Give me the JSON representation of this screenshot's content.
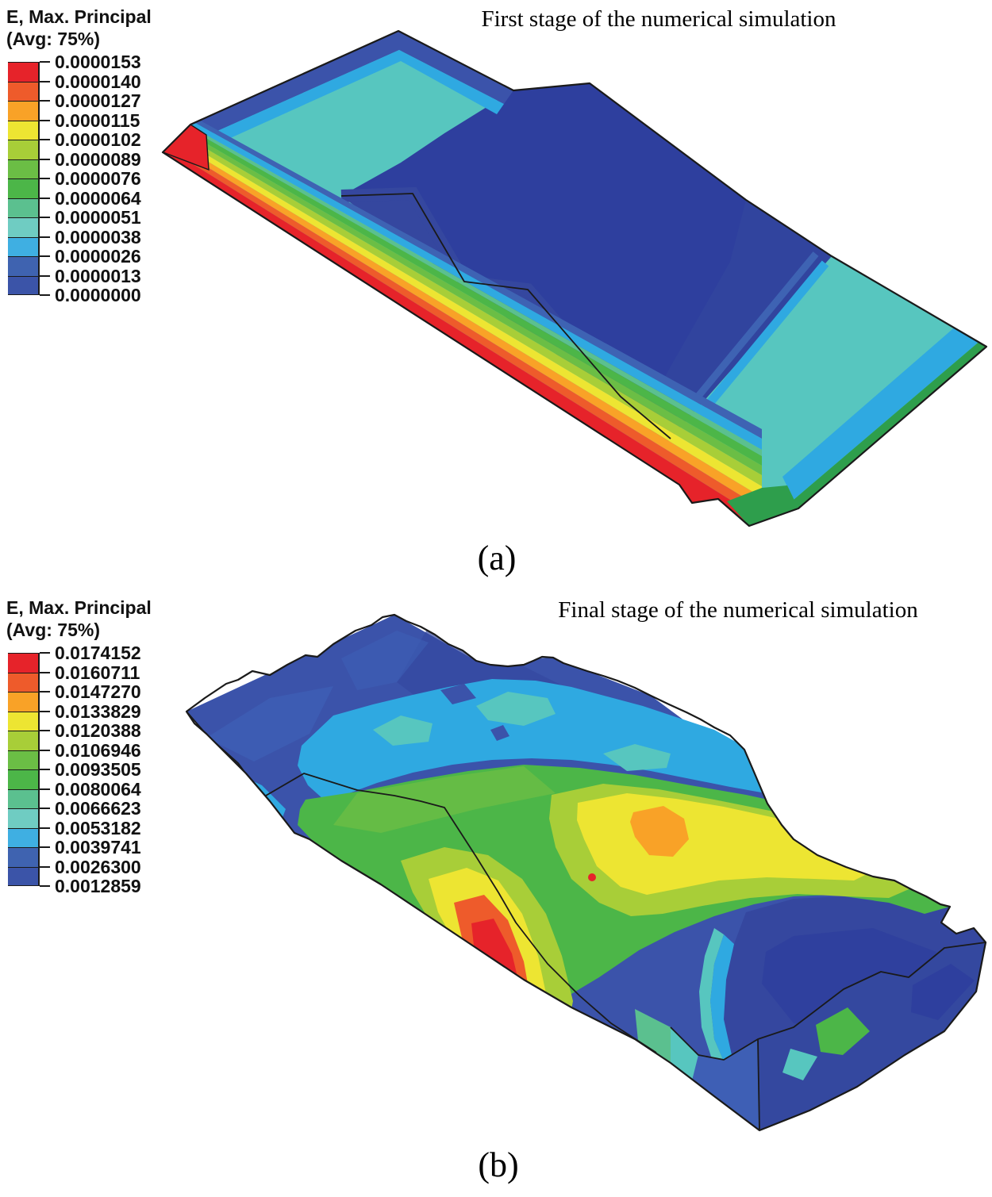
{
  "palette": {
    "red": "#E6232A",
    "orange_red": "#EE5B2B",
    "orange": "#F9A227",
    "yellow": "#EDE532",
    "yellow_green": "#A8CE38",
    "light_green": "#6BBE45",
    "green": "#4CB648",
    "sea_green": "#5BC08F",
    "teal": "#57C6BF",
    "cyan": "#2FA9E1",
    "light_blue": "#3E63B3",
    "blue": "#3B53AA",
    "indigo": "#2E3F9E",
    "navy": "#34489F",
    "medium_blue": "#3E5FB5",
    "slope_blue": "#35479F",
    "dark_green": "#2E9E4C",
    "outline": "#1a1a1a"
  },
  "panels": [
    {
      "id": "a",
      "caption": "(a)",
      "title": "First stage of the numerical simulation",
      "legend": {
        "field": "E, Max. Principal",
        "averaging": "(Avg: 75%)",
        "ticks": [
          "0.0000153",
          "0.0000140",
          "0.0000127",
          "0.0000115",
          "0.0000102",
          "0.0000089",
          "0.0000076",
          "0.0000064",
          "0.0000051",
          "0.0000038",
          "0.0000026",
          "0.0000013",
          "0.0000000"
        ],
        "swatches": [
          "#E6232A",
          "#EE5B2B",
          "#F9A227",
          "#EDE532",
          "#A8CE38",
          "#6BBE45",
          "#4CB648",
          "#5BC08F",
          "#6FCCC2",
          "#3FAFE2",
          "#3F63B0",
          "#3B54A8"
        ]
      }
    },
    {
      "id": "b",
      "caption": "(b)",
      "title": "Final stage of the numerical simulation",
      "legend": {
        "field": "E, Max. Principal",
        "averaging": "(Avg: 75%)",
        "ticks": [
          "0.0174152",
          "0.0160711",
          "0.0147270",
          "0.0133829",
          "0.0120388",
          "0.0106946",
          "0.0093505",
          "0.0080064",
          "0.0066623",
          "0.0053182",
          "0.0039741",
          "0.0026300",
          "0.0012859"
        ],
        "swatches": [
          "#E6232A",
          "#EE5B2B",
          "#F9A227",
          "#EDE532",
          "#A8CE38",
          "#6BBE45",
          "#4CB648",
          "#5BC08F",
          "#6FCCC2",
          "#3FAFE2",
          "#3F63B0",
          "#3B54A8"
        ]
      }
    }
  ]
}
